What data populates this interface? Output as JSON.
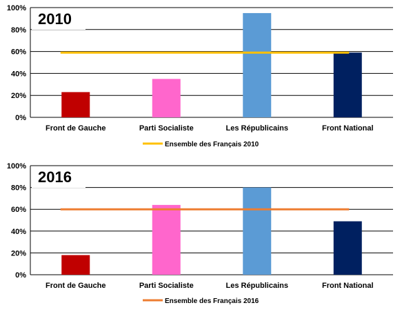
{
  "chart_data": [
    {
      "type": "bar",
      "title": "2010",
      "categories": [
        "Front de Gauche",
        "Parti Socialiste",
        "Les Républicains",
        "Front National"
      ],
      "values": [
        23,
        35,
        95,
        59
      ],
      "bar_colors": [
        "#c00000",
        "#ff66cc",
        "#5b9bd5",
        "#002060"
      ],
      "ylim": [
        0,
        100
      ],
      "y_ticks": [
        "0%",
        "20%",
        "40%",
        "60%",
        "80%",
        "100%"
      ],
      "grid": true,
      "reference_line": {
        "name": "Ensemble des Français 2010",
        "value": 59,
        "color": "#ffc000"
      },
      "legend_position": "bottom"
    },
    {
      "type": "bar",
      "title": "2016",
      "categories": [
        "Front de Gauche",
        "Parti Socialiste",
        "Les Républicains",
        "Front National"
      ],
      "values": [
        18,
        64,
        80,
        49
      ],
      "bar_colors": [
        "#c00000",
        "#ff66cc",
        "#5b9bd5",
        "#002060"
      ],
      "ylim": [
        0,
        100
      ],
      "y_ticks": [
        "0%",
        "20%",
        "40%",
        "60%",
        "80%",
        "100%"
      ],
      "grid": true,
      "reference_line": {
        "name": "Ensemble des Français 2016",
        "value": 60,
        "color": "#ed7d31"
      },
      "legend_position": "bottom"
    }
  ]
}
